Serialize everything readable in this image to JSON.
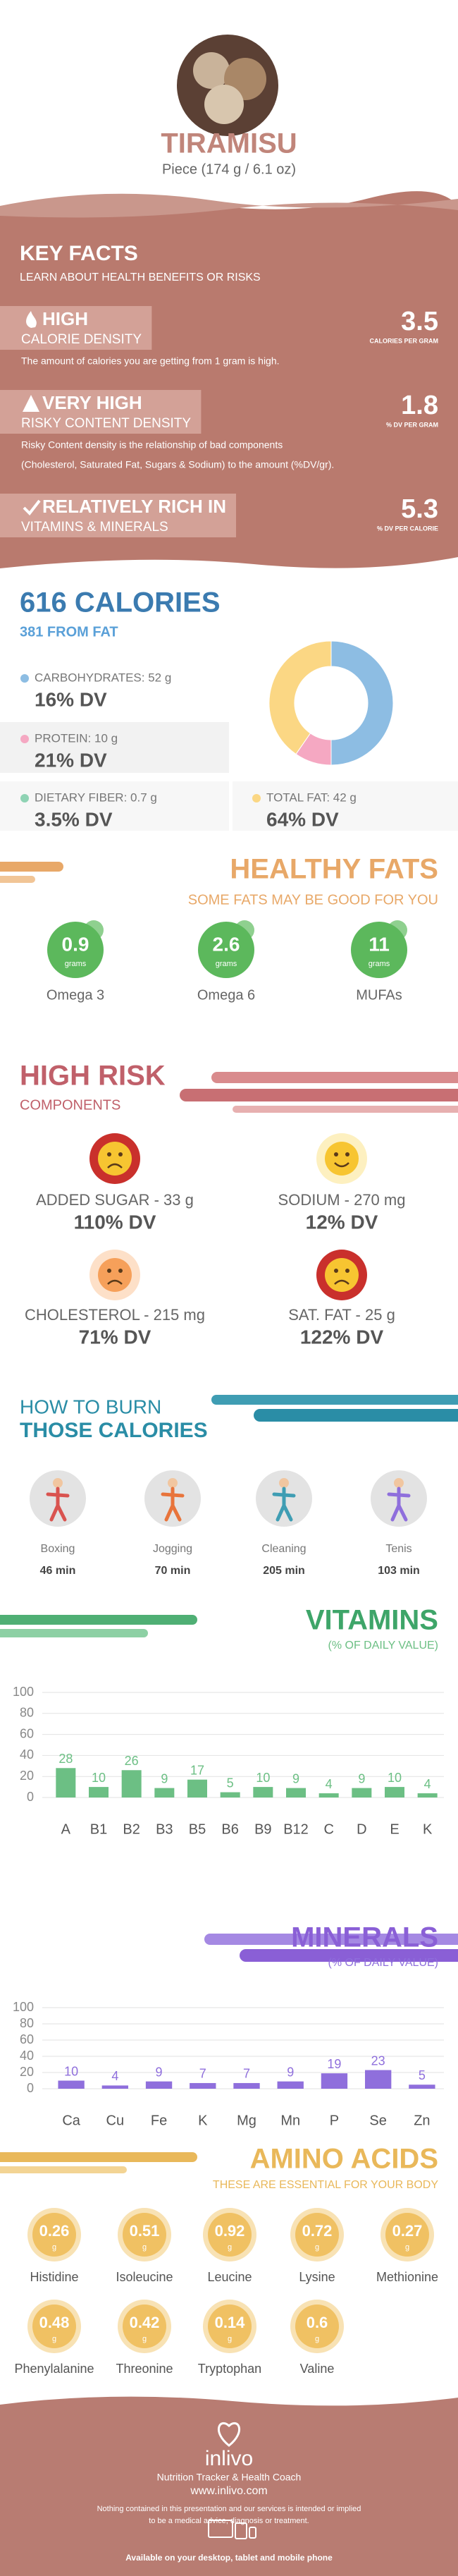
{
  "header": {
    "title": "TIRAMISU",
    "subtitle": "Piece (174 g / 6.1 oz)"
  },
  "key_facts": {
    "title": "KEY FACTS",
    "subtitle": "LEARN ABOUT HEALTH BENEFITS OR RISKS",
    "items": [
      {
        "level": "HIGH",
        "label": "CALORIE DENSITY",
        "value": 3.5,
        "unit": "CALORIES PER GRAM",
        "description": [
          "The amount of calories you are getting from 1 gram is high."
        ]
      },
      {
        "level": "VERY HIGH",
        "label": "RISKY CONTENT DENSITY",
        "value": 1.8,
        "unit": "% DV PER GRAM",
        "description": [
          "Risky Content density is the relationship of bad components",
          "(Cholesterol, Saturated Fat, Sugars & Sodium) to the amount (%DV/gr)."
        ]
      },
      {
        "level": "RELATIVELY RICH IN",
        "label": "VITAMINS & MINERALS",
        "value": 5.3,
        "unit": "% DV PER CALORIE"
      }
    ]
  },
  "calories": {
    "title": "616 CALORIES",
    "subtitle": "381 FROM FAT",
    "nutrients": [
      {
        "label": "CARBOHYDRATES: 52 g",
        "dv": "16% DV",
        "grams": 52,
        "color": "#8dbde3"
      },
      {
        "label": "PROTEIN: 10 g",
        "dv": "21% DV",
        "grams": 10,
        "color": "#f5a8c2"
      },
      {
        "label": "DIETARY FIBER: 0.7 g",
        "dv": "3.5% DV",
        "color": "#8fd3b4"
      },
      {
        "label": "TOTAL FAT: 42 g",
        "dv": "64% DV",
        "grams": 42,
        "color": "#fbd784"
      }
    ]
  },
  "healthy_fats": {
    "title": "HEALTHY FATS",
    "subtitle": "SOME FATS MAY BE GOOD FOR YOU",
    "unit": "grams",
    "items": [
      {
        "name": "Omega 3",
        "value": 0.9
      },
      {
        "name": "Omega 6",
        "value": 2.6
      },
      {
        "name": "MUFAs",
        "value": 11
      }
    ]
  },
  "high_risk": {
    "title": "HIGH RISK",
    "subtitle": "COMPONENTS",
    "items": [
      {
        "label": "ADDED SUGAR - 33 g",
        "dv": "110% DV"
      },
      {
        "label": "SODIUM - 270 mg",
        "dv": "12% DV"
      },
      {
        "label": "CHOLESTEROL - 215 mg",
        "dv": "71% DV"
      },
      {
        "label": "SAT. FAT - 25 g",
        "dv": "122% DV"
      }
    ]
  },
  "burn": {
    "title": "HOW TO BURN",
    "subtitle": "THOSE CALORIES",
    "items": [
      {
        "name": "Boxing",
        "time": "46 min"
      },
      {
        "name": "Jogging",
        "time": "70 min"
      },
      {
        "name": "Cleaning",
        "time": "205 min"
      },
      {
        "name": "Tenis",
        "time": "103 min"
      }
    ]
  },
  "vitamins": {
    "type": "bar",
    "title": "VITAMINS",
    "subtitle": "(% OF DAILY VALUE)",
    "categories": [
      "A",
      "B1",
      "B2",
      "B3",
      "B5",
      "B6",
      "B9",
      "B12",
      "C",
      "D",
      "E",
      "K"
    ],
    "values": [
      28,
      10,
      26,
      9,
      17,
      5,
      10,
      9,
      4,
      9,
      10,
      4
    ],
    "color": "#6cbf84",
    "ylim": [
      0,
      100
    ],
    "yticks": [
      0,
      20,
      40,
      60,
      80,
      100
    ],
    "grid": true
  },
  "minerals": {
    "type": "bar",
    "title": "MINERALS",
    "subtitle": "(% OF DAILY VALUE)",
    "categories": [
      "Ca",
      "Cu",
      "Fe",
      "K",
      "Mg",
      "Mn",
      "P",
      "Se",
      "Zn"
    ],
    "values": [
      10,
      4,
      9,
      7,
      7,
      9,
      19,
      23,
      5
    ],
    "color": "#8f6fdc",
    "ylim": [
      0,
      100
    ],
    "yticks": [
      0,
      20,
      40,
      60,
      80,
      100
    ],
    "grid": true
  },
  "amino_acids": {
    "title": "AMINO ACIDS",
    "subtitle": "THESE ARE ESSENTIAL FOR YOUR BODY",
    "unit": "g",
    "items": [
      {
        "name": "Histidine",
        "value": 0.26
      },
      {
        "name": "Isoleucine",
        "value": 0.51
      },
      {
        "name": "Leucine",
        "value": 0.92
      },
      {
        "name": "Lysine",
        "value": 0.72
      },
      {
        "name": "Methionine",
        "value": 0.27
      },
      {
        "name": "Phenylalanine",
        "value": 0.48
      },
      {
        "name": "Threonine",
        "value": 0.42
      },
      {
        "name": "Tryptophan",
        "value": 0.14
      },
      {
        "name": "Valine",
        "value": 0.6
      }
    ]
  },
  "footer": {
    "brand": "inlivo",
    "tagline": "Nutrition Tracker & Health Coach",
    "url": "www.inlivo.com",
    "disclaimer": [
      "Nothing contained in this presentation and our services is intended or implied",
      "to be a medical advice, diagnosis or treatment."
    ],
    "availability": "Available on your desktop, tablet and mobile phone"
  }
}
